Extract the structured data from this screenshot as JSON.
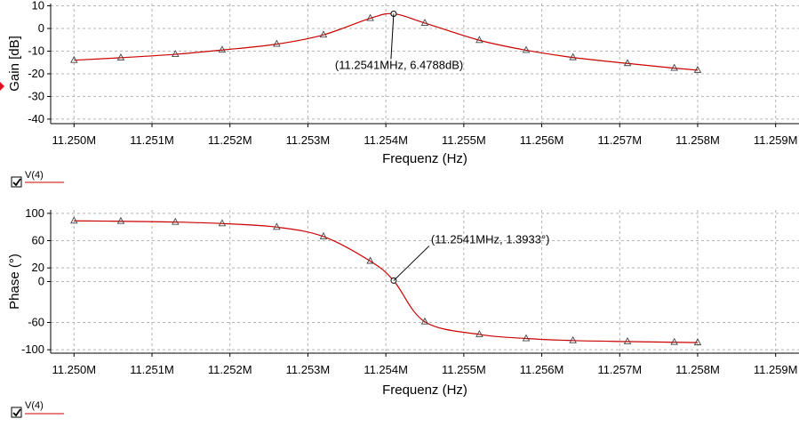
{
  "colors": {
    "trace": "#cc0000",
    "grid": "#b4b4b4",
    "marker_left": "#e01020"
  },
  "chart_data": [
    {
      "type": "line",
      "xlabel": "Frequenz (Hz)",
      "ylabel": "Gain [dB]",
      "xlim": [
        11.2497,
        11.2593
      ],
      "ylim": [
        -42,
        11
      ],
      "xticks": [
        11.25,
        11.251,
        11.252,
        11.253,
        11.254,
        11.255,
        11.256,
        11.257,
        11.258,
        11.259
      ],
      "xtick_labels": [
        "11.250M",
        "11.251M",
        "11.252M",
        "11.253M",
        "11.254M",
        "11.255M",
        "11.256M",
        "11.257M",
        "11.258M",
        "11.259M"
      ],
      "yticks": [
        10,
        0,
        -10,
        -20,
        -30,
        -40
      ],
      "ytick_labels": [
        "10",
        "0",
        "-10",
        "-20",
        "-30",
        "-40"
      ],
      "grid": true,
      "series": [
        {
          "name": "V(4)",
          "x": [
            11.25,
            11.2506,
            11.2513,
            11.2519,
            11.2526,
            11.2532,
            11.2538,
            11.2541,
            11.2545,
            11.2552,
            11.2558,
            11.2564,
            11.2571,
            11.2577,
            11.258
          ],
          "y": [
            -14.0,
            -12.9,
            -11.4,
            -9.5,
            -6.9,
            -2.8,
            4.5,
            6.4788,
            2.4,
            -5.2,
            -9.6,
            -12.8,
            -15.4,
            -17.5,
            -18.4
          ]
        }
      ],
      "annotation": {
        "x": 11.2541,
        "y": 6.4788,
        "text": "(11.2541MHz, 6.4788dB)"
      }
    },
    {
      "type": "line",
      "xlabel": "Frequenz (Hz)",
      "ylabel": "Phase (°)",
      "xlim": [
        11.2497,
        11.2593
      ],
      "ylim": [
        -105,
        105
      ],
      "xticks": [
        11.25,
        11.251,
        11.252,
        11.253,
        11.254,
        11.255,
        11.256,
        11.257,
        11.258,
        11.259
      ],
      "xtick_labels": [
        "11.250M",
        "11.251M",
        "11.252M",
        "11.253M",
        "11.254M",
        "11.255M",
        "11.256M",
        "11.257M",
        "11.258M",
        "11.259M"
      ],
      "yticks": [
        100,
        60,
        20,
        0,
        -60,
        -100
      ],
      "ytick_labels": [
        "100",
        "60",
        "20",
        "0",
        "-60",
        "-100"
      ],
      "grid": true,
      "series": [
        {
          "name": "V(4)",
          "x": [
            11.25,
            11.2506,
            11.2513,
            11.2519,
            11.2526,
            11.2532,
            11.2538,
            11.2541,
            11.2545,
            11.2552,
            11.2558,
            11.2564,
            11.2571,
            11.2577,
            11.258
          ],
          "y": [
            89.0,
            88.4,
            87.2,
            85.0,
            79.8,
            66.0,
            30.0,
            1.3933,
            -59.0,
            -77.5,
            -83.5,
            -86.5,
            -88.0,
            -89.0,
            -89.5
          ]
        }
      ],
      "annotation": {
        "x": 11.2541,
        "y": 1.3933,
        "text": "(11.2541MHz, 1.3933°)"
      }
    }
  ],
  "legends": [
    {
      "label": "V(4)",
      "checked": true
    },
    {
      "label": "V(4)",
      "checked": true
    }
  ]
}
